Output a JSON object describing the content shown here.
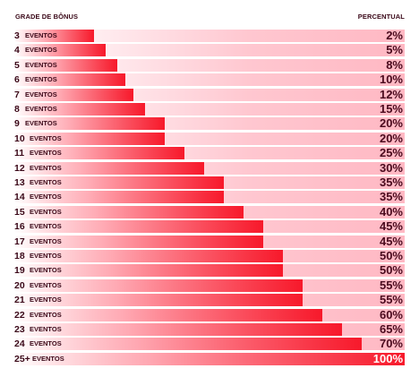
{
  "header": {
    "left": "GRADE DE BÔNUS",
    "right": "PERCENTUAL"
  },
  "chart_data": {
    "type": "bar",
    "orientation": "horizontal",
    "xlabel": "GRADE DE BÔNUS",
    "ylabel": "PERCENTUAL",
    "unit_label": "EVENTOS",
    "categories": [
      "3",
      "4",
      "5",
      "6",
      "7",
      "8",
      "9",
      "10",
      "11",
      "12",
      "13",
      "14",
      "15",
      "16",
      "17",
      "18",
      "19",
      "20",
      "21",
      "22",
      "23",
      "24",
      "25+"
    ],
    "values": [
      2,
      5,
      8,
      10,
      12,
      15,
      20,
      20,
      25,
      30,
      35,
      35,
      40,
      45,
      45,
      50,
      50,
      55,
      55,
      60,
      65,
      70,
      100
    ],
    "value_labels": [
      "2%",
      "5%",
      "8%",
      "10%",
      "12%",
      "15%",
      "20%",
      "20%",
      "25%",
      "30%",
      "35%",
      "35%",
      "40%",
      "45%",
      "45%",
      "50%",
      "50%",
      "55%",
      "55%",
      "60%",
      "65%",
      "70%",
      "100%"
    ],
    "xlim": [
      0,
      100
    ],
    "colors": {
      "bar": "#f7192b",
      "track": "#ffc7d0",
      "text": "#3a0818"
    }
  }
}
